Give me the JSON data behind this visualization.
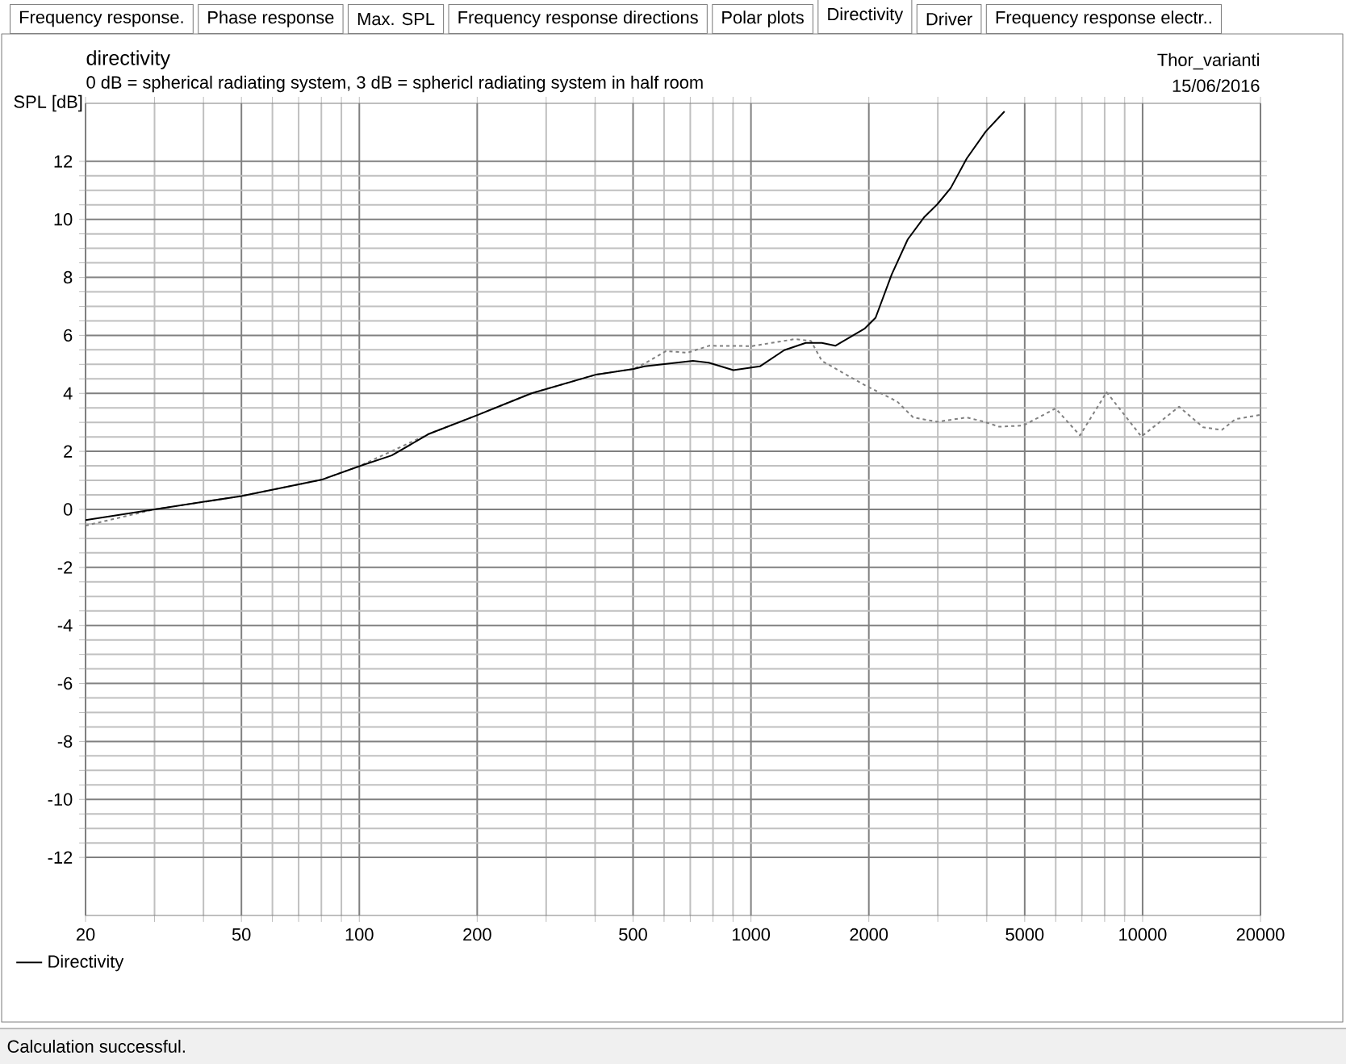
{
  "chart_data": {
    "type": "line",
    "title": "directivity",
    "subtitle": "0 dB = spherical radiating system, 3 dB = sphericl radiating system in half room",
    "ylabel": "SPL [dB]",
    "annotations": [
      "Thor_varianti",
      "15/06/2016",
      "Frequency response.",
      "Phase response",
      "Max. SPL",
      "Frequency response directions",
      "Polar plots",
      "Directivity",
      "Driver",
      "Frequency response electr..",
      "Calculation successful."
    ],
    "log": "x",
    "grid": true,
    "legend": "bottom left",
    "xlim": [
      20,
      20000
    ],
    "xticks": [
      20,
      50,
      100,
      200,
      500,
      1000,
      2000,
      5000,
      10000,
      20000
    ],
    "ylim": [
      -14,
      14
    ],
    "yticks": [
      -12,
      -10,
      -8,
      -6,
      -4,
      -2,
      0,
      2,
      4,
      6,
      8,
      10,
      12
    ],
    "series": [
      {
        "name": "Directivity",
        "color": "#000000",
        "line_style": "solid",
        "x": [
          20,
          30,
          50,
          80,
          100,
          121,
          151,
          201,
          275,
          403,
          502,
          535,
          711,
          780,
          902,
          1054,
          1216,
          1380,
          1517,
          1642,
          1954,
          2081,
          2288,
          2514,
          2763,
          2992,
          3237,
          3557,
          3978,
          4440
        ],
        "values": [
          -0.37,
          0.0,
          0.46,
          1.02,
          1.49,
          1.86,
          2.61,
          3.26,
          4.0,
          4.65,
          4.84,
          4.93,
          5.12,
          5.06,
          4.8,
          4.93,
          5.49,
          5.74,
          5.74,
          5.64,
          6.24,
          6.61,
          8.1,
          9.31,
          10.06,
          10.52,
          11.08,
          12.1,
          13.03,
          13.72
        ]
      },
      {
        "color": "#808080",
        "line_style": "dashed",
        "x": [
          20,
          30,
          50,
          80,
          100,
          151,
          201,
          275,
          403,
          502,
          535,
          607,
          689,
          781,
          1007,
          1294,
          1422,
          1517,
          1954,
          2362,
          2595,
          2992,
          3557,
          3917,
          4305,
          4956,
          5995,
          6918,
          8094,
          9930,
          12390,
          14280,
          15930,
          17250,
          20000
        ],
        "values": [
          -0.56,
          0.0,
          0.46,
          1.02,
          1.49,
          2.61,
          3.26,
          4.0,
          4.65,
          4.84,
          5.03,
          5.46,
          5.4,
          5.64,
          5.63,
          5.87,
          5.81,
          5.12,
          4.28,
          3.72,
          3.17,
          3.02,
          3.17,
          3.03,
          2.85,
          2.89,
          3.48,
          2.55,
          4.04,
          2.51,
          3.54,
          2.83,
          2.74,
          3.11,
          3.26
        ]
      }
    ]
  }
}
